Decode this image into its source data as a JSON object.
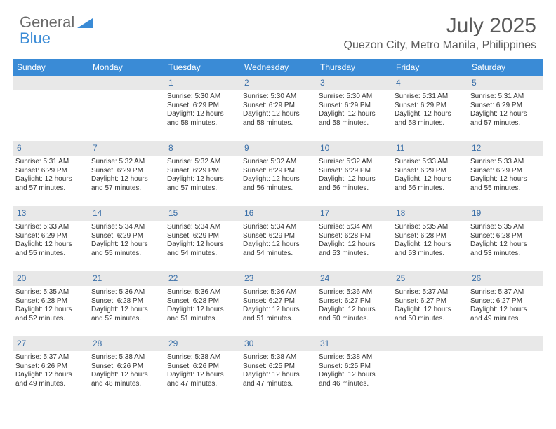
{
  "brand": {
    "line1": "General",
    "line2": "Blue"
  },
  "title": "July 2025",
  "location": "Quezon City, Metro Manila, Philippines",
  "day_headers": [
    "Sunday",
    "Monday",
    "Tuesday",
    "Wednesday",
    "Thursday",
    "Friday",
    "Saturday"
  ],
  "colors": {
    "header_bg": "#3a8bd6",
    "header_text": "#ffffff",
    "daynum_bg": "#e8e8e8",
    "daynum_text": "#3a6fa8",
    "body_text": "#333333",
    "title_text": "#5a5a5a",
    "logo_gray": "#6a6a6a",
    "logo_blue": "#3a8bd6",
    "background": "#ffffff"
  },
  "typography": {
    "title_fontsize": 30,
    "location_fontsize": 16,
    "dayheader_fontsize": 12,
    "daynum_fontsize": 12,
    "cell_fontsize": 10,
    "logo_fontsize": 22
  },
  "weeks": [
    {
      "nums": [
        "",
        "",
        "1",
        "2",
        "3",
        "4",
        "5"
      ],
      "cells": [
        null,
        null,
        {
          "sunrise": "Sunrise: 5:30 AM",
          "sunset": "Sunset: 6:29 PM",
          "dl1": "Daylight: 12 hours",
          "dl2": "and 58 minutes."
        },
        {
          "sunrise": "Sunrise: 5:30 AM",
          "sunset": "Sunset: 6:29 PM",
          "dl1": "Daylight: 12 hours",
          "dl2": "and 58 minutes."
        },
        {
          "sunrise": "Sunrise: 5:30 AM",
          "sunset": "Sunset: 6:29 PM",
          "dl1": "Daylight: 12 hours",
          "dl2": "and 58 minutes."
        },
        {
          "sunrise": "Sunrise: 5:31 AM",
          "sunset": "Sunset: 6:29 PM",
          "dl1": "Daylight: 12 hours",
          "dl2": "and 58 minutes."
        },
        {
          "sunrise": "Sunrise: 5:31 AM",
          "sunset": "Sunset: 6:29 PM",
          "dl1": "Daylight: 12 hours",
          "dl2": "and 57 minutes."
        }
      ]
    },
    {
      "nums": [
        "6",
        "7",
        "8",
        "9",
        "10",
        "11",
        "12"
      ],
      "cells": [
        {
          "sunrise": "Sunrise: 5:31 AM",
          "sunset": "Sunset: 6:29 PM",
          "dl1": "Daylight: 12 hours",
          "dl2": "and 57 minutes."
        },
        {
          "sunrise": "Sunrise: 5:32 AM",
          "sunset": "Sunset: 6:29 PM",
          "dl1": "Daylight: 12 hours",
          "dl2": "and 57 minutes."
        },
        {
          "sunrise": "Sunrise: 5:32 AM",
          "sunset": "Sunset: 6:29 PM",
          "dl1": "Daylight: 12 hours",
          "dl2": "and 57 minutes."
        },
        {
          "sunrise": "Sunrise: 5:32 AM",
          "sunset": "Sunset: 6:29 PM",
          "dl1": "Daylight: 12 hours",
          "dl2": "and 56 minutes."
        },
        {
          "sunrise": "Sunrise: 5:32 AM",
          "sunset": "Sunset: 6:29 PM",
          "dl1": "Daylight: 12 hours",
          "dl2": "and 56 minutes."
        },
        {
          "sunrise": "Sunrise: 5:33 AM",
          "sunset": "Sunset: 6:29 PM",
          "dl1": "Daylight: 12 hours",
          "dl2": "and 56 minutes."
        },
        {
          "sunrise": "Sunrise: 5:33 AM",
          "sunset": "Sunset: 6:29 PM",
          "dl1": "Daylight: 12 hours",
          "dl2": "and 55 minutes."
        }
      ]
    },
    {
      "nums": [
        "13",
        "14",
        "15",
        "16",
        "17",
        "18",
        "19"
      ],
      "cells": [
        {
          "sunrise": "Sunrise: 5:33 AM",
          "sunset": "Sunset: 6:29 PM",
          "dl1": "Daylight: 12 hours",
          "dl2": "and 55 minutes."
        },
        {
          "sunrise": "Sunrise: 5:34 AM",
          "sunset": "Sunset: 6:29 PM",
          "dl1": "Daylight: 12 hours",
          "dl2": "and 55 minutes."
        },
        {
          "sunrise": "Sunrise: 5:34 AM",
          "sunset": "Sunset: 6:29 PM",
          "dl1": "Daylight: 12 hours",
          "dl2": "and 54 minutes."
        },
        {
          "sunrise": "Sunrise: 5:34 AM",
          "sunset": "Sunset: 6:29 PM",
          "dl1": "Daylight: 12 hours",
          "dl2": "and 54 minutes."
        },
        {
          "sunrise": "Sunrise: 5:34 AM",
          "sunset": "Sunset: 6:28 PM",
          "dl1": "Daylight: 12 hours",
          "dl2": "and 53 minutes."
        },
        {
          "sunrise": "Sunrise: 5:35 AM",
          "sunset": "Sunset: 6:28 PM",
          "dl1": "Daylight: 12 hours",
          "dl2": "and 53 minutes."
        },
        {
          "sunrise": "Sunrise: 5:35 AM",
          "sunset": "Sunset: 6:28 PM",
          "dl1": "Daylight: 12 hours",
          "dl2": "and 53 minutes."
        }
      ]
    },
    {
      "nums": [
        "20",
        "21",
        "22",
        "23",
        "24",
        "25",
        "26"
      ],
      "cells": [
        {
          "sunrise": "Sunrise: 5:35 AM",
          "sunset": "Sunset: 6:28 PM",
          "dl1": "Daylight: 12 hours",
          "dl2": "and 52 minutes."
        },
        {
          "sunrise": "Sunrise: 5:36 AM",
          "sunset": "Sunset: 6:28 PM",
          "dl1": "Daylight: 12 hours",
          "dl2": "and 52 minutes."
        },
        {
          "sunrise": "Sunrise: 5:36 AM",
          "sunset": "Sunset: 6:28 PM",
          "dl1": "Daylight: 12 hours",
          "dl2": "and 51 minutes."
        },
        {
          "sunrise": "Sunrise: 5:36 AM",
          "sunset": "Sunset: 6:27 PM",
          "dl1": "Daylight: 12 hours",
          "dl2": "and 51 minutes."
        },
        {
          "sunrise": "Sunrise: 5:36 AM",
          "sunset": "Sunset: 6:27 PM",
          "dl1": "Daylight: 12 hours",
          "dl2": "and 50 minutes."
        },
        {
          "sunrise": "Sunrise: 5:37 AM",
          "sunset": "Sunset: 6:27 PM",
          "dl1": "Daylight: 12 hours",
          "dl2": "and 50 minutes."
        },
        {
          "sunrise": "Sunrise: 5:37 AM",
          "sunset": "Sunset: 6:27 PM",
          "dl1": "Daylight: 12 hours",
          "dl2": "and 49 minutes."
        }
      ]
    },
    {
      "nums": [
        "27",
        "28",
        "29",
        "30",
        "31",
        "",
        ""
      ],
      "cells": [
        {
          "sunrise": "Sunrise: 5:37 AM",
          "sunset": "Sunset: 6:26 PM",
          "dl1": "Daylight: 12 hours",
          "dl2": "and 49 minutes."
        },
        {
          "sunrise": "Sunrise: 5:38 AM",
          "sunset": "Sunset: 6:26 PM",
          "dl1": "Daylight: 12 hours",
          "dl2": "and 48 minutes."
        },
        {
          "sunrise": "Sunrise: 5:38 AM",
          "sunset": "Sunset: 6:26 PM",
          "dl1": "Daylight: 12 hours",
          "dl2": "and 47 minutes."
        },
        {
          "sunrise": "Sunrise: 5:38 AM",
          "sunset": "Sunset: 6:25 PM",
          "dl1": "Daylight: 12 hours",
          "dl2": "and 47 minutes."
        },
        {
          "sunrise": "Sunrise: 5:38 AM",
          "sunset": "Sunset: 6:25 PM",
          "dl1": "Daylight: 12 hours",
          "dl2": "and 46 minutes."
        },
        null,
        null
      ]
    }
  ]
}
